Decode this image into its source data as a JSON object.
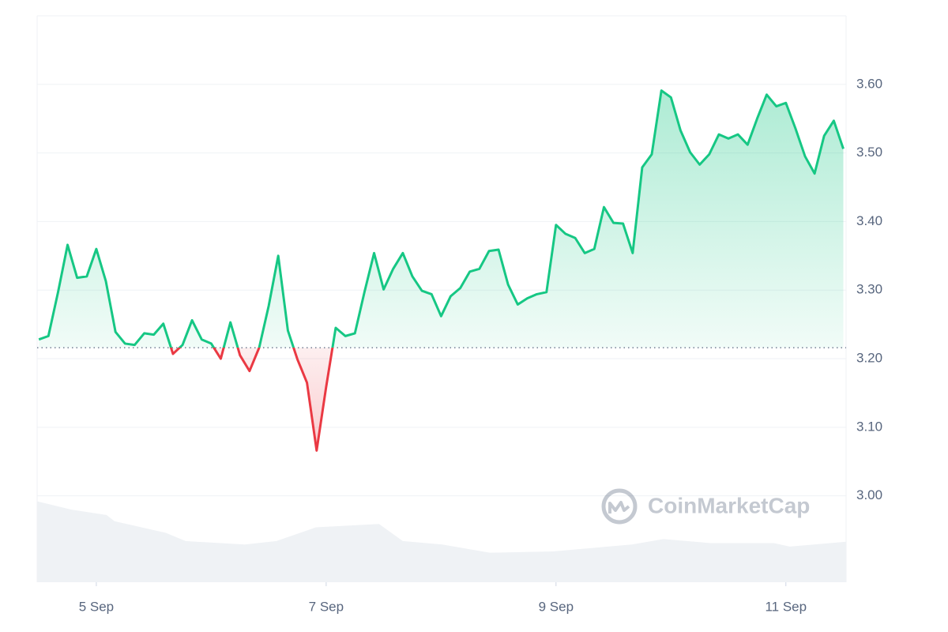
{
  "chart_data": {
    "type": "baseline-area",
    "watermark": "CoinMarketCap",
    "baseline": 3.216,
    "up_color": "#16c784",
    "down_color": "#ea3943",
    "x": [
      4.5,
      4.583,
      4.667,
      4.75,
      4.833,
      4.917,
      5,
      5.083,
      5.167,
      5.25,
      5.333,
      5.417,
      5.5,
      5.583,
      5.667,
      5.75,
      5.833,
      5.917,
      6,
      6.083,
      6.167,
      6.25,
      6.333,
      6.417,
      6.5,
      6.583,
      6.667,
      6.75,
      6.833,
      6.917,
      7,
      7.083,
      7.167,
      7.25,
      7.333,
      7.417,
      7.5,
      7.583,
      7.667,
      7.75,
      7.833,
      7.917,
      8,
      8.083,
      8.167,
      8.25,
      8.333,
      8.417,
      8.5,
      8.583,
      8.667,
      8.75,
      8.833,
      8.917,
      9,
      9.083,
      9.167,
      9.25,
      9.333,
      9.417,
      9.5,
      9.583,
      9.667,
      9.75,
      9.833,
      9.917,
      10,
      10.083,
      10.167,
      10.25,
      10.333,
      10.417,
      10.5,
      10.583,
      10.667,
      10.75,
      10.833,
      10.917,
      11,
      11.083,
      11.167,
      11.25,
      11.333,
      11.417,
      11.5
    ],
    "series": [
      {
        "color": "#16c784",
        "values": [
          3.228,
          3.233,
          3.297,
          3.366,
          3.318,
          3.32,
          3.36,
          3.313,
          3.239,
          3.222,
          3.22,
          3.237,
          3.235,
          3.251,
          3.207,
          3.22,
          3.256,
          3.228,
          3.222,
          3.2,
          3.253,
          3.205,
          3.182,
          3.216,
          3.277,
          3.35,
          3.241,
          3.199,
          3.165,
          3.066,
          3.159,
          3.245,
          3.233,
          3.237,
          3.297,
          3.354,
          3.301,
          3.331,
          3.354,
          3.32,
          3.299,
          3.294,
          3.262,
          3.291,
          3.303,
          3.327,
          3.331,
          3.357,
          3.359,
          3.308,
          3.279,
          3.288,
          3.294,
          3.297,
          3.395,
          3.382,
          3.376,
          3.354,
          3.36,
          3.421,
          3.398,
          3.397,
          3.354,
          3.479,
          3.498,
          3.591,
          3.581,
          3.533,
          3.501,
          3.483,
          3.498,
          3.527,
          3.521,
          3.527,
          3.512,
          3.55,
          3.585,
          3.568,
          3.573,
          3.536,
          3.495,
          3.47,
          3.525,
          3.547,
          3.506
        ]
      }
    ],
    "volume": {
      "color": "#eff2f5",
      "x": [
        4.485,
        4.78,
        5.089,
        5.158,
        5.605,
        5.777,
        6.292,
        6.567,
        6.911,
        7.46,
        7.667,
        8.01,
        8.423,
        8.973,
        9.66,
        9.935,
        10.347,
        10.897,
        11.034,
        11.522
      ],
      "values": [
        2.992,
        2.98,
        2.972,
        2.963,
        2.946,
        2.934,
        2.929,
        2.934,
        2.954,
        2.959,
        2.934,
        2.929,
        2.917,
        2.919,
        2.929,
        2.937,
        2.931,
        2.931,
        2.926,
        2.933
      ]
    },
    "xlim": [
      4.485,
      11.524
    ],
    "xticks": [
      {
        "value": 5,
        "label": "5 Sep"
      },
      {
        "value": 7,
        "label": "7 Sep"
      },
      {
        "value": 9,
        "label": "9 Sep"
      },
      {
        "value": 11,
        "label": "11 Sep"
      }
    ],
    "ylim": [
      2.874,
      3.7
    ],
    "yticks": [
      {
        "value": 3,
        "label": "3.00"
      },
      {
        "value": 3.1,
        "label": "3.10"
      },
      {
        "value": 3.2,
        "label": "3.20"
      },
      {
        "value": 3.3,
        "label": "3.30"
      },
      {
        "value": 3.4,
        "label": "3.40"
      },
      {
        "value": 3.5,
        "label": "3.50"
      },
      {
        "value": 3.6,
        "label": "3.60"
      }
    ],
    "grid": true
  }
}
